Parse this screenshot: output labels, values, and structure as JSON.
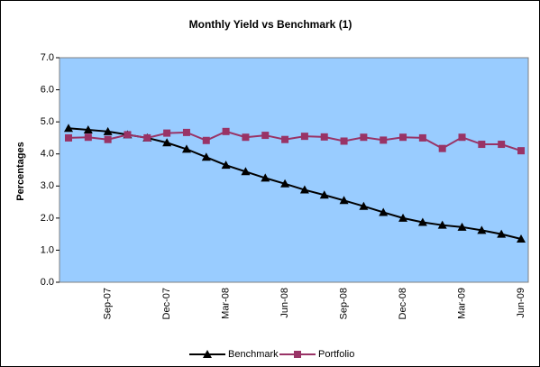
{
  "chart_data": {
    "type": "line",
    "title": "Monthly Yield vs Benchmark (1)",
    "y_label": "Percentages",
    "categories": [
      null,
      null,
      "Sep-07",
      null,
      null,
      "Dec-07",
      null,
      null,
      "Mar-08",
      null,
      null,
      "Jun-08",
      null,
      null,
      "Sep-08",
      null,
      null,
      "Dec-08",
      null,
      null,
      "Mar-09",
      null,
      null,
      "Jun-09"
    ],
    "series": [
      {
        "name": "Benchmark",
        "color": "#000000",
        "marker": "triangle",
        "values": [
          4.8,
          4.75,
          4.7,
          4.6,
          4.5,
          4.35,
          4.15,
          3.9,
          3.65,
          3.45,
          3.25,
          3.07,
          2.88,
          2.72,
          2.55,
          2.37,
          2.18,
          2.0,
          1.87,
          1.78,
          1.72,
          1.62,
          1.5,
          1.35
        ]
      },
      {
        "name": "Portfolio",
        "color": "#993366",
        "marker": "square",
        "values": [
          4.5,
          4.52,
          4.45,
          4.6,
          4.5,
          4.65,
          4.67,
          4.42,
          4.7,
          4.52,
          4.58,
          4.45,
          4.55,
          4.53,
          4.4,
          4.52,
          4.43,
          4.52,
          4.5,
          4.17,
          4.52,
          4.3,
          4.3,
          4.1
        ]
      }
    ],
    "ylim": [
      0,
      7
    ],
    "yticks": [
      {
        "value": 0,
        "label": "0.0"
      },
      {
        "value": 1,
        "label": "1.0"
      },
      {
        "value": 2,
        "label": "2.0"
      },
      {
        "value": 3,
        "label": "3.0"
      },
      {
        "value": 4,
        "label": "4.0"
      },
      {
        "value": 5,
        "label": "5.0"
      },
      {
        "value": 6,
        "label": "6.0"
      },
      {
        "value": 7,
        "label": "7.0"
      }
    ],
    "plot_background": "#99ccff",
    "legend": "bottom"
  }
}
